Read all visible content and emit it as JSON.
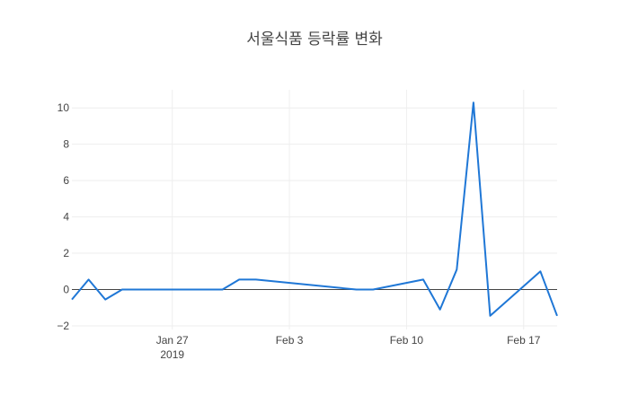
{
  "chart_data": {
    "type": "line",
    "title": "서울식품 등락률 변화",
    "xlabel": "",
    "ylabel": "",
    "xlim": [
      "2019-01-21",
      "2019-02-19"
    ],
    "ylim": [
      -2.2,
      11.0
    ],
    "grid": true,
    "line_color": "#1f77d6",
    "x_ticks": [
      {
        "date": "2019-01-27",
        "label": "Jan 27",
        "sublabel": "2019"
      },
      {
        "date": "2019-02-03",
        "label": "Feb 3",
        "sublabel": ""
      },
      {
        "date": "2019-02-10",
        "label": "Feb 10",
        "sublabel": ""
      },
      {
        "date": "2019-02-17",
        "label": "Feb 17",
        "sublabel": ""
      }
    ],
    "y_ticks": [
      {
        "value": -2,
        "label": "−2"
      },
      {
        "value": 0,
        "label": "0"
      },
      {
        "value": 2,
        "label": "2"
      },
      {
        "value": 4,
        "label": "4"
      },
      {
        "value": 6,
        "label": "6"
      },
      {
        "value": 8,
        "label": "8"
      },
      {
        "value": 10,
        "label": "10"
      }
    ],
    "series": [
      {
        "x": [
          "2019-01-21",
          "2019-01-22",
          "2019-01-23",
          "2019-01-24",
          "2019-01-25",
          "2019-01-28",
          "2019-01-29",
          "2019-01-30",
          "2019-01-31",
          "2019-02-01",
          "2019-02-07",
          "2019-02-08",
          "2019-02-11",
          "2019-02-12",
          "2019-02-13",
          "2019-02-14",
          "2019-02-15",
          "2019-02-18",
          "2019-02-19"
        ],
        "values": [
          -0.55,
          0.55,
          -0.55,
          0.0,
          0.0,
          0.0,
          0.0,
          0.0,
          0.55,
          0.55,
          0.0,
          0.0,
          0.55,
          -1.1,
          1.1,
          10.3,
          -1.45,
          1.0,
          -1.45
        ]
      }
    ]
  }
}
